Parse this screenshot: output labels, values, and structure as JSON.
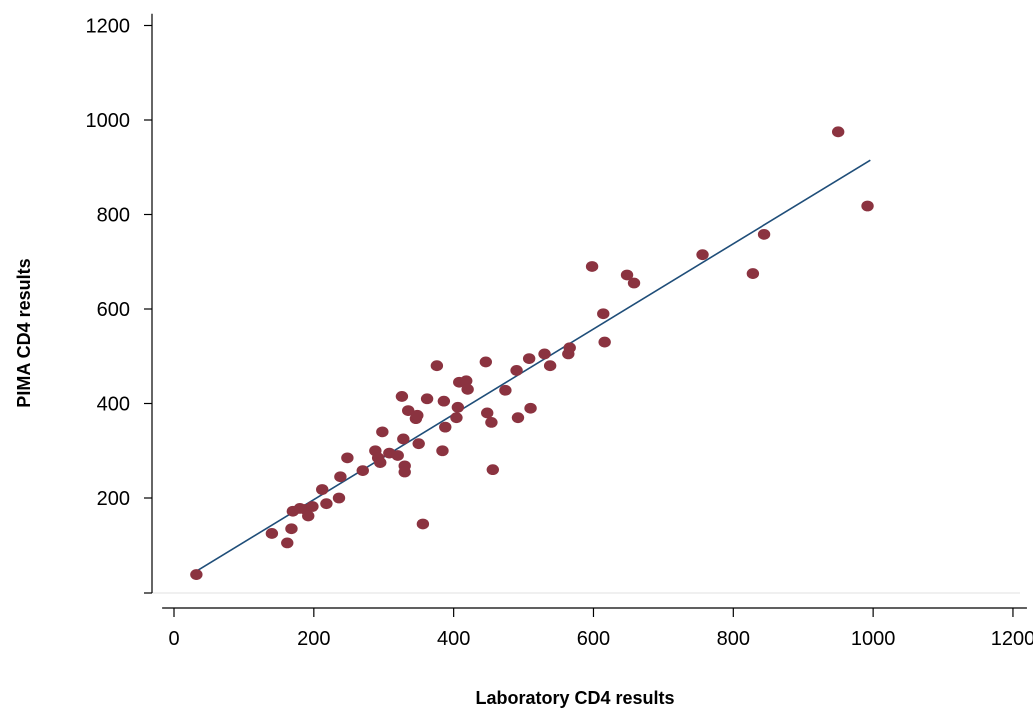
{
  "chart_data": {
    "type": "scatter",
    "xlabel": "Laboratory CD4 results",
    "ylabel": "PIMA CD4 results",
    "xlim": [
      -20,
      1220
    ],
    "ylim": [
      -5,
      1230
    ],
    "xticks": [
      0,
      200,
      400,
      600,
      800,
      1000,
      1200
    ],
    "yticks": [
      200,
      400,
      600,
      800,
      1000,
      1200
    ],
    "grid": false,
    "colors": {
      "points": "#8b3340",
      "fit_line": "#1f4e79"
    },
    "series": [
      {
        "type": "scatter",
        "points": [
          [
            32,
            38
          ],
          [
            140,
            125
          ],
          [
            162,
            105
          ],
          [
            168,
            135
          ],
          [
            170,
            172
          ],
          [
            180,
            178
          ],
          [
            188,
            176
          ],
          [
            192,
            162
          ],
          [
            198,
            182
          ],
          [
            212,
            218
          ],
          [
            218,
            188
          ],
          [
            236,
            200
          ],
          [
            238,
            245
          ],
          [
            248,
            285
          ],
          [
            270,
            258
          ],
          [
            288,
            300
          ],
          [
            292,
            285
          ],
          [
            295,
            275
          ],
          [
            298,
            340
          ],
          [
            308,
            295
          ],
          [
            320,
            290
          ],
          [
            326,
            415
          ],
          [
            328,
            325
          ],
          [
            330,
            268
          ],
          [
            330,
            255
          ],
          [
            335,
            385
          ],
          [
            346,
            368
          ],
          [
            348,
            375
          ],
          [
            350,
            315
          ],
          [
            356,
            145
          ],
          [
            362,
            410
          ],
          [
            376,
            480
          ],
          [
            384,
            300
          ],
          [
            386,
            405
          ],
          [
            388,
            350
          ],
          [
            404,
            370
          ],
          [
            406,
            392
          ],
          [
            408,
            445
          ],
          [
            418,
            448
          ],
          [
            420,
            430
          ],
          [
            446,
            488
          ],
          [
            448,
            380
          ],
          [
            454,
            360
          ],
          [
            456,
            260
          ],
          [
            474,
            428
          ],
          [
            490,
            470
          ],
          [
            492,
            370
          ],
          [
            508,
            495
          ],
          [
            510,
            390
          ],
          [
            530,
            505
          ],
          [
            538,
            480
          ],
          [
            564,
            505
          ],
          [
            566,
            518
          ],
          [
            598,
            690
          ],
          [
            614,
            590
          ],
          [
            616,
            530
          ],
          [
            648,
            672
          ],
          [
            658,
            655
          ],
          [
            756,
            715
          ],
          [
            828,
            675
          ],
          [
            844,
            758
          ],
          [
            950,
            975
          ],
          [
            992,
            818
          ]
        ]
      },
      {
        "type": "line",
        "points": [
          [
            32,
            45
          ],
          [
            996,
            915
          ]
        ]
      }
    ]
  }
}
